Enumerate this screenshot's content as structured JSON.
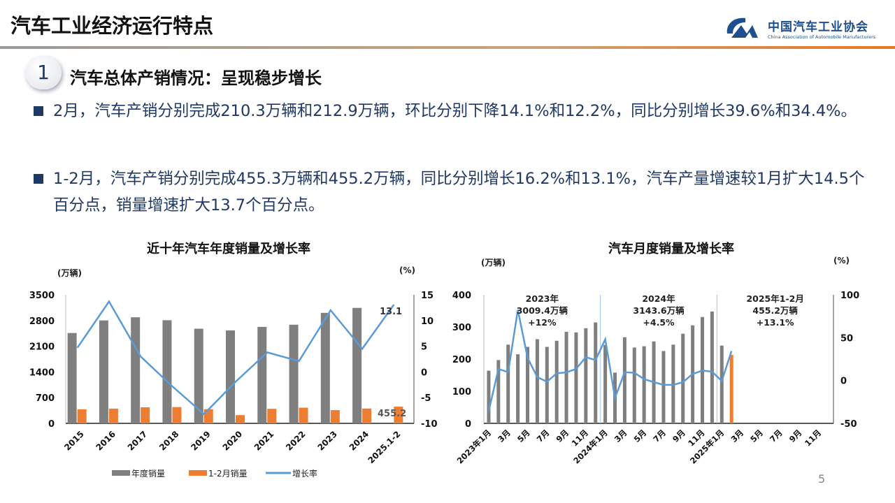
{
  "header": {
    "title": "汽车工业经济运行特点",
    "logo_cn": "中国汽车工业协会",
    "logo_en": "China Association of Automobile Manufacturers",
    "logo_mark": "CAAM"
  },
  "section": {
    "number": "1",
    "heading": "汽车总体产销情况：呈现稳步增长"
  },
  "bullets": [
    "2月，汽车产销分别完成210.3万辆和212.9万辆，环比分别下降14.1%和12.2%，同比分别增长39.6%和34.4%。",
    "1-2月，汽车产销分别完成455.3万辆和455.2万辆，同比分别增长16.2%和13.1%，汽车产量增速较1月扩大14.5个百分点，销量增速扩大13.7个百分点。"
  ],
  "page_number": "5",
  "colors": {
    "gray_bar": "#7f7f7f",
    "orange_bar": "#ed7d31",
    "line": "#5b9bd5",
    "text_blue": "#1f3864"
  },
  "chart_data": [
    {
      "type": "bar+line",
      "title": "近十年汽车年度销量及增长率",
      "ylabel": "(万辆)",
      "y2label": "(%)",
      "ylim": [
        0,
        3500
      ],
      "yticks": [
        0,
        700,
        1400,
        2100,
        2800,
        3500
      ],
      "y2lim": [
        -10,
        15
      ],
      "y2ticks": [
        -10,
        -5,
        0,
        5,
        10,
        15
      ],
      "categories": [
        "2015",
        "2016",
        "2017",
        "2018",
        "2019",
        "2020",
        "2021",
        "2022",
        "2023",
        "2024",
        "2025.1-2"
      ],
      "series": [
        {
          "name": "年度销量",
          "type": "bar",
          "axis": "left",
          "values": [
            2460,
            2803,
            2888,
            2808,
            2577,
            2531,
            2627,
            2686,
            3009,
            3144,
            null
          ]
        },
        {
          "name": "1-2月销量",
          "type": "bar",
          "axis": "left",
          "values": [
            382,
            400,
            438,
            443,
            386,
            224,
            396,
            427,
            361,
            403,
            455.2
          ]
        },
        {
          "name": "增长率",
          "type": "line",
          "axis": "right",
          "values": [
            4.7,
            13.7,
            3.0,
            -2.8,
            -8.2,
            -1.9,
            3.8,
            2.1,
            12.0,
            4.5,
            13.1
          ]
        }
      ],
      "data_labels": {
        "growth_last": "13.1",
        "sales_last": "455.2"
      },
      "legend": "bottom",
      "grid": false
    },
    {
      "type": "bar+line",
      "title": "汽车月度销量及增长率",
      "ylabel": "(万辆)",
      "y2label": "(%)",
      "ylim": [
        0,
        400
      ],
      "yticks": [
        0,
        100,
        200,
        300,
        400
      ],
      "y2lim": [
        -50,
        100
      ],
      "y2ticks": [
        -50,
        0,
        50,
        100
      ],
      "x_labels": [
        "2023年1月",
        "3月",
        "5月",
        "7月",
        "9月",
        "11月",
        "2024年1月",
        "3月",
        "5月",
        "7月",
        "9月",
        "11月",
        "2025年1月",
        "3月",
        "5月",
        "7月",
        "9月",
        "11月"
      ],
      "bar_values": [
        164,
        197,
        245,
        215,
        238,
        262,
        238,
        257,
        285,
        283,
        296,
        314,
        244,
        158,
        268,
        236,
        240,
        255,
        225,
        245,
        279,
        305,
        331,
        348,
        242,
        212.9,
        null,
        null,
        null,
        null,
        null,
        null,
        null,
        null,
        null,
        null
      ],
      "highlight_index": 25,
      "growth_values": [
        -35.7,
        13.5,
        9.7,
        82.4,
        26.5,
        4,
        -1.4,
        8.4,
        9.5,
        13.5,
        27.3,
        23.8,
        48.1,
        -20.3,
        9.7,
        9,
        1.6,
        -1.9,
        -5.1,
        -5.1,
        -1.9,
        7.6,
        11.6,
        10.3,
        -0.6,
        34.4,
        null,
        null,
        null,
        null,
        null,
        null,
        null,
        null,
        null,
        null
      ],
      "annotations": [
        {
          "year": "2023年",
          "total": "3009.4万辆",
          "growth": "+12%"
        },
        {
          "year": "2024年",
          "total": "3143.6万辆",
          "growth": "+4.5%"
        },
        {
          "year": "2025年1-2月",
          "total": "455.2万辆",
          "growth": "+13.1%"
        }
      ],
      "grid": false
    }
  ]
}
